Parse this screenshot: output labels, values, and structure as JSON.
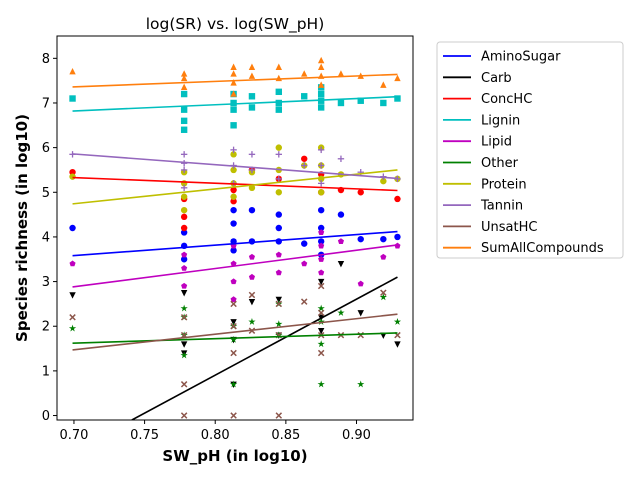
{
  "chart_data": {
    "type": "scatter",
    "title": "log(SR) vs. log(SW_pH)",
    "xlabel": "SW_pH (in log10)",
    "ylabel": "Species richness (in log10)",
    "xlim": [
      0.688,
      0.94
    ],
    "ylim": [
      -0.1,
      8.5
    ],
    "xticks": [
      0.7,
      0.75,
      0.8,
      0.85,
      0.9
    ],
    "xtick_labels": [
      "0.70",
      "0.75",
      "0.80",
      "0.85",
      "0.90"
    ],
    "yticks": [
      0,
      1,
      2,
      3,
      4,
      5,
      6,
      7,
      8
    ],
    "ytick_labels": [
      "0",
      "1",
      "2",
      "3",
      "4",
      "5",
      "6",
      "7",
      "8"
    ],
    "grid": false,
    "legend_position": "outside-right",
    "series": [
      {
        "name": "AminoSugar",
        "color": "#0000ff",
        "marker": "circle",
        "fit": [
          [
            0.699,
            3.58
          ],
          [
            0.929,
            4.12
          ]
        ],
        "x": [
          0.699,
          0.778,
          0.778,
          0.778,
          0.813,
          0.813,
          0.813,
          0.813,
          0.826,
          0.826,
          0.845,
          0.845,
          0.845,
          0.863,
          0.875,
          0.875,
          0.875,
          0.875,
          0.889,
          0.903,
          0.919,
          0.929
        ],
        "y": [
          4.2,
          3.5,
          3.8,
          4.1,
          3.7,
          3.9,
          4.3,
          4.6,
          3.9,
          4.6,
          3.9,
          4.2,
          4.5,
          3.85,
          3.6,
          3.9,
          4.2,
          4.6,
          4.5,
          3.95,
          3.95,
          4.0
        ]
      },
      {
        "name": "Carb",
        "color": "#000000",
        "marker": "triangle-down",
        "fit": [
          [
            0.741,
            -0.1
          ],
          [
            0.929,
            3.1
          ]
        ],
        "x": [
          0.699,
          0.778,
          0.778,
          0.778,
          0.813,
          0.813,
          0.813,
          0.826,
          0.845,
          0.845,
          0.875,
          0.875,
          0.875,
          0.889,
          0.903,
          0.919,
          0.929
        ],
        "y": [
          2.7,
          1.4,
          1.6,
          2.75,
          0.7,
          1.7,
          2.1,
          2.55,
          1.8,
          2.6,
          1.9,
          2.2,
          3.0,
          3.4,
          2.3,
          1.8,
          1.6
        ]
      },
      {
        "name": "ConcHC",
        "color": "#ff0000",
        "marker": "circle",
        "fit": [
          [
            0.699,
            5.33
          ],
          [
            0.929,
            5.04
          ]
        ],
        "x": [
          0.699,
          0.778,
          0.778,
          0.778,
          0.813,
          0.813,
          0.826,
          0.845,
          0.863,
          0.875,
          0.875,
          0.889,
          0.903,
          0.929
        ],
        "y": [
          5.45,
          4.45,
          4.2,
          4.85,
          4.8,
          5.05,
          5.5,
          5.3,
          5.75,
          5.0,
          5.4,
          5.05,
          5.0,
          4.85
        ]
      },
      {
        "name": "Lignin",
        "color": "#00bfbf",
        "marker": "square",
        "fit": [
          [
            0.699,
            6.82
          ],
          [
            0.929,
            7.14
          ]
        ],
        "x": [
          0.699,
          0.778,
          0.778,
          0.778,
          0.778,
          0.813,
          0.813,
          0.813,
          0.813,
          0.826,
          0.826,
          0.845,
          0.845,
          0.845,
          0.863,
          0.875,
          0.875,
          0.875,
          0.875,
          0.889,
          0.903,
          0.919,
          0.929
        ],
        "y": [
          7.1,
          6.4,
          6.6,
          6.85,
          7.2,
          6.5,
          6.85,
          7.0,
          7.2,
          6.9,
          7.15,
          6.85,
          7.0,
          7.25,
          7.15,
          6.9,
          7.05,
          7.2,
          7.35,
          7.0,
          7.05,
          7.0,
          7.1
        ]
      },
      {
        "name": "Lipid",
        "color": "#bf00bf",
        "marker": "pentagon",
        "fit": [
          [
            0.699,
            2.88
          ],
          [
            0.929,
            3.82
          ]
        ],
        "x": [
          0.699,
          0.778,
          0.778,
          0.778,
          0.813,
          0.813,
          0.813,
          0.813,
          0.826,
          0.826,
          0.845,
          0.845,
          0.863,
          0.875,
          0.875,
          0.875,
          0.875,
          0.889,
          0.903,
          0.919,
          0.929
        ],
        "y": [
          3.4,
          2.9,
          3.3,
          3.6,
          2.6,
          3.0,
          3.4,
          3.8,
          3.1,
          3.55,
          3.2,
          3.6,
          3.4,
          3.2,
          3.5,
          3.8,
          4.1,
          3.9,
          2.95,
          3.55,
          3.8
        ]
      },
      {
        "name": "Other",
        "color": "#008000",
        "marker": "star",
        "fit": [
          [
            0.699,
            1.62
          ],
          [
            0.929,
            1.85
          ]
        ],
        "x": [
          0.699,
          0.778,
          0.778,
          0.778,
          0.778,
          0.813,
          0.813,
          0.813,
          0.826,
          0.845,
          0.845,
          0.845,
          0.875,
          0.875,
          0.875,
          0.875,
          0.889,
          0.903,
          0.919,
          0.929
        ],
        "y": [
          1.95,
          1.35,
          1.8,
          2.2,
          2.4,
          0.7,
          1.7,
          2.0,
          2.1,
          1.8,
          2.05,
          2.5,
          0.7,
          1.6,
          2.1,
          2.4,
          2.3,
          0.7,
          2.65,
          2.1
        ]
      },
      {
        "name": "Protein",
        "color": "#bfbf00",
        "marker": "circle",
        "fit": [
          [
            0.699,
            4.74
          ],
          [
            0.929,
            5.5
          ]
        ],
        "x": [
          0.699,
          0.778,
          0.778,
          0.778,
          0.778,
          0.813,
          0.813,
          0.813,
          0.813,
          0.826,
          0.826,
          0.845,
          0.845,
          0.845,
          0.863,
          0.875,
          0.875,
          0.875,
          0.875,
          0.889,
          0.919,
          0.929
        ],
        "y": [
          5.35,
          4.6,
          4.9,
          5.2,
          5.45,
          4.9,
          5.2,
          5.5,
          5.85,
          5.1,
          5.45,
          5.0,
          5.5,
          6.0,
          5.6,
          5.0,
          5.3,
          5.6,
          6.0,
          5.4,
          5.25,
          5.3
        ]
      },
      {
        "name": "Tannin",
        "color": "#9467bd",
        "marker": "plus",
        "fit": [
          [
            0.699,
            5.86
          ],
          [
            0.929,
            5.31
          ]
        ],
        "x": [
          0.699,
          0.778,
          0.778,
          0.778,
          0.778,
          0.813,
          0.813,
          0.813,
          0.826,
          0.826,
          0.845,
          0.845,
          0.863,
          0.875,
          0.875,
          0.875,
          0.889,
          0.903,
          0.919,
          0.929
        ],
        "y": [
          5.85,
          5.1,
          5.5,
          5.65,
          5.85,
          5.2,
          5.6,
          5.95,
          5.5,
          5.85,
          5.3,
          5.85,
          5.6,
          5.2,
          5.6,
          5.95,
          5.75,
          5.45,
          5.35,
          5.3
        ]
      },
      {
        "name": "UnsatHC",
        "color": "#8c564b",
        "marker": "x",
        "fit": [
          [
            0.699,
            1.47
          ],
          [
            0.929,
            2.27
          ]
        ],
        "x": [
          0.699,
          0.778,
          0.778,
          0.778,
          0.778,
          0.813,
          0.813,
          0.813,
          0.813,
          0.826,
          0.826,
          0.845,
          0.845,
          0.845,
          0.863,
          0.875,
          0.875,
          0.875,
          0.875,
          0.889,
          0.903,
          0.919,
          0.929
        ],
        "y": [
          2.2,
          0.0,
          0.7,
          1.8,
          2.2,
          0.0,
          1.4,
          2.0,
          2.5,
          1.9,
          2.7,
          0.0,
          1.8,
          2.5,
          2.55,
          1.4,
          1.8,
          2.3,
          2.9,
          1.8,
          1.8,
          2.75,
          1.8
        ]
      },
      {
        "name": "SumAllCompounds",
        "color": "#ff7f0e",
        "marker": "triangle-up",
        "fit": [
          [
            0.699,
            7.36
          ],
          [
            0.929,
            7.64
          ]
        ],
        "x": [
          0.699,
          0.778,
          0.778,
          0.778,
          0.813,
          0.813,
          0.813,
          0.813,
          0.826,
          0.826,
          0.845,
          0.845,
          0.863,
          0.875,
          0.875,
          0.875,
          0.875,
          0.889,
          0.903,
          0.919,
          0.929
        ],
        "y": [
          7.7,
          7.35,
          7.55,
          7.65,
          7.2,
          7.45,
          7.65,
          7.8,
          7.6,
          7.8,
          7.55,
          7.8,
          7.65,
          7.4,
          7.6,
          7.8,
          7.95,
          7.65,
          7.6,
          7.4,
          7.55
        ]
      }
    ]
  }
}
